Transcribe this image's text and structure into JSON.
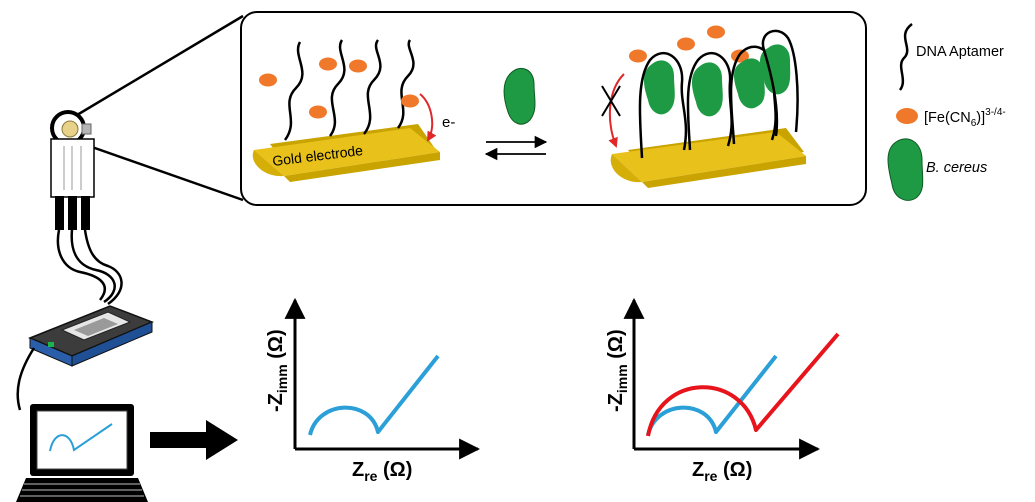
{
  "panel": {
    "electrode_label": "Gold electrode",
    "electron_label": "e-"
  },
  "legend": {
    "aptamer": "DNA Aptamer",
    "redox_probe": {
      "base": "[Fe(CN",
      "sub": "6",
      "close": ")]",
      "sup": "3-/4-"
    },
    "bacteria": "B. cereus"
  },
  "plots": [
    {
      "y_base": "-Z",
      "y_sub": "imm",
      "y_unit": " (Ω)",
      "x_base": "Z",
      "x_sub": "re",
      "x_unit": " (Ω)"
    },
    {
      "y_base": "-Z",
      "y_sub": "imm",
      "y_unit": " (Ω)",
      "x_base": "Z",
      "x_sub": "re",
      "x_unit": " (Ω)"
    }
  ],
  "colors": {
    "gold": "#e8c21a",
    "gold_dark": "#c9a300",
    "probe": "#f0782a",
    "bacteria": "#1f9a44",
    "blue_curve": "#2a9fd8",
    "red_curve": "#e8141c",
    "arrow_red": "#e0282a"
  }
}
